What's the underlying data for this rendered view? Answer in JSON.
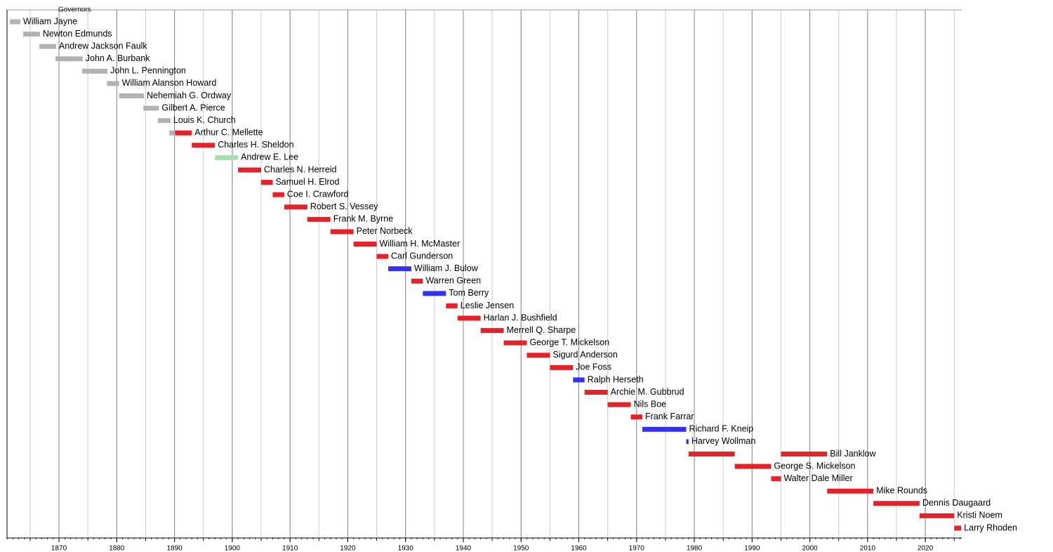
{
  "chart_data": {
    "type": "timeline",
    "title": "Governors",
    "xlim": [
      1861,
      2026.3
    ],
    "xticks": [
      1870,
      1880,
      1890,
      1900,
      1910,
      1920,
      1930,
      1940,
      1950,
      1960,
      1970,
      1980,
      1990,
      2000,
      2010,
      2020
    ],
    "minor_grid_step": 5,
    "minor_tick_step": 1,
    "grid": true,
    "rows": [
      {
        "name": "William Jayne",
        "terms": [
          {
            "start": 1861.5,
            "end": 1863.3,
            "color": "#b2b2b2"
          }
        ]
      },
      {
        "name": "Newton Edmunds",
        "terms": [
          {
            "start": 1863.8,
            "end": 1866.7,
            "color": "#b2b2b2"
          }
        ]
      },
      {
        "name": "Andrew Jackson Faulk",
        "terms": [
          {
            "start": 1866.6,
            "end": 1869.5,
            "color": "#b2b2b2"
          }
        ]
      },
      {
        "name": "John A. Burbank",
        "terms": [
          {
            "start": 1869.4,
            "end": 1874.1,
            "color": "#b2b2b2"
          }
        ]
      },
      {
        "name": "John L. Pennington",
        "terms": [
          {
            "start": 1874,
            "end": 1878.4,
            "color": "#b2b2b2"
          }
        ]
      },
      {
        "name": "William Alanson Howard",
        "terms": [
          {
            "start": 1878.3,
            "end": 1880.4,
            "color": "#b2b2b2"
          }
        ]
      },
      {
        "name": "Nehemiah G. Ordway",
        "terms": [
          {
            "start": 1880.4,
            "end": 1884.7,
            "color": "#b2b2b2"
          }
        ]
      },
      {
        "name": "Gilbert A. Pierce",
        "terms": [
          {
            "start": 1884.6,
            "end": 1887.3,
            "color": "#b2b2b2"
          }
        ]
      },
      {
        "name": "Louis K. Church",
        "terms": [
          {
            "start": 1887.1,
            "end": 1889.3,
            "color": "#b2b2b2"
          }
        ]
      },
      {
        "name": "Arthur C. Mellette",
        "terms": [
          {
            "start": 1889.1,
            "end": 1890.1,
            "color": "#b2b2b2"
          },
          {
            "start": 1890.1,
            "end": 1893,
            "color": "#e3222a"
          }
        ]
      },
      {
        "name": "Charles H. Sheldon",
        "terms": [
          {
            "start": 1893,
            "end": 1897,
            "color": "#e3222a"
          }
        ]
      },
      {
        "name": "Andrew E. Lee",
        "terms": [
          {
            "start": 1897,
            "end": 1901,
            "color": "#a6e0ad"
          }
        ]
      },
      {
        "name": "Charles N. Herreid",
        "terms": [
          {
            "start": 1901,
            "end": 1905,
            "color": "#e3222a"
          }
        ]
      },
      {
        "name": "Samuel H. Elrod",
        "terms": [
          {
            "start": 1905,
            "end": 1907,
            "color": "#e3222a"
          }
        ]
      },
      {
        "name": "Coe I. Crawford",
        "terms": [
          {
            "start": 1907,
            "end": 1909,
            "color": "#e3222a"
          }
        ]
      },
      {
        "name": "Robert S. Vessey",
        "terms": [
          {
            "start": 1909,
            "end": 1913,
            "color": "#e3222a"
          }
        ]
      },
      {
        "name": "Frank M. Byrne",
        "terms": [
          {
            "start": 1913,
            "end": 1917,
            "color": "#e3222a"
          }
        ]
      },
      {
        "name": "Peter Norbeck",
        "terms": [
          {
            "start": 1917,
            "end": 1921,
            "color": "#e3222a"
          }
        ]
      },
      {
        "name": "William H. McMaster",
        "terms": [
          {
            "start": 1921,
            "end": 1925,
            "color": "#e3222a"
          }
        ]
      },
      {
        "name": "Carl Gunderson",
        "terms": [
          {
            "start": 1925,
            "end": 1927,
            "color": "#e3222a"
          }
        ]
      },
      {
        "name": "William J. Bulow",
        "terms": [
          {
            "start": 1927,
            "end": 1931,
            "color": "#3333ee"
          }
        ]
      },
      {
        "name": "Warren Green",
        "terms": [
          {
            "start": 1931,
            "end": 1933,
            "color": "#e3222a"
          }
        ]
      },
      {
        "name": "Tom Berry",
        "terms": [
          {
            "start": 1933,
            "end": 1937,
            "color": "#3333ee"
          }
        ]
      },
      {
        "name": "Leslie Jensen",
        "terms": [
          {
            "start": 1937,
            "end": 1939,
            "color": "#e3222a"
          }
        ]
      },
      {
        "name": "Harlan J. Bushfield",
        "terms": [
          {
            "start": 1939,
            "end": 1943,
            "color": "#e3222a"
          }
        ]
      },
      {
        "name": "Merrell Q. Sharpe",
        "terms": [
          {
            "start": 1943,
            "end": 1947,
            "color": "#e3222a"
          }
        ]
      },
      {
        "name": "George T. Mickelson",
        "terms": [
          {
            "start": 1947,
            "end": 1951,
            "color": "#e3222a"
          }
        ]
      },
      {
        "name": "Sigurd Anderson",
        "terms": [
          {
            "start": 1951,
            "end": 1955,
            "color": "#e3222a"
          }
        ]
      },
      {
        "name": "Joe Foss",
        "terms": [
          {
            "start": 1955,
            "end": 1959,
            "color": "#e3222a"
          }
        ]
      },
      {
        "name": "Ralph Herseth",
        "terms": [
          {
            "start": 1959,
            "end": 1961,
            "color": "#3333ee"
          }
        ]
      },
      {
        "name": "Archie M. Gubbrud",
        "terms": [
          {
            "start": 1961,
            "end": 1965,
            "color": "#e3222a"
          }
        ]
      },
      {
        "name": "Nils Boe",
        "terms": [
          {
            "start": 1965,
            "end": 1969,
            "color": "#e3222a"
          }
        ]
      },
      {
        "name": "Frank Farrar",
        "terms": [
          {
            "start": 1969,
            "end": 1971,
            "color": "#e3222a"
          }
        ]
      },
      {
        "name": "Richard F. Kneip",
        "terms": [
          {
            "start": 1971,
            "end": 1978.6,
            "color": "#3333ee"
          }
        ]
      },
      {
        "name": "Harvey Wollman",
        "terms": [
          {
            "start": 1978.6,
            "end": 1979,
            "color": "#3333ee"
          }
        ]
      },
      {
        "name": "Bill Janklow",
        "terms": [
          {
            "start": 1979,
            "end": 1987,
            "color": "#e3222a"
          },
          {
            "start": 1995,
            "end": 2003,
            "color": "#e3222a"
          }
        ]
      },
      {
        "name": "George S. Mickelson",
        "terms": [
          {
            "start": 1987,
            "end": 1993.3,
            "color": "#e3222a"
          }
        ]
      },
      {
        "name": "Walter Dale Miller",
        "terms": [
          {
            "start": 1993.3,
            "end": 1995,
            "color": "#e3222a"
          }
        ]
      },
      {
        "name": "Mike Rounds",
        "terms": [
          {
            "start": 2003,
            "end": 2011,
            "color": "#e3222a"
          }
        ]
      },
      {
        "name": "Dennis Daugaard",
        "terms": [
          {
            "start": 2011,
            "end": 2019,
            "color": "#e3222a"
          }
        ]
      },
      {
        "name": "Kristi Noem",
        "terms": [
          {
            "start": 2019,
            "end": 2025,
            "color": "#e3222a"
          }
        ]
      },
      {
        "name": "Larry Rhoden",
        "terms": [
          {
            "start": 2025,
            "end": 2026.2,
            "color": "#e3222a"
          }
        ]
      }
    ]
  }
}
